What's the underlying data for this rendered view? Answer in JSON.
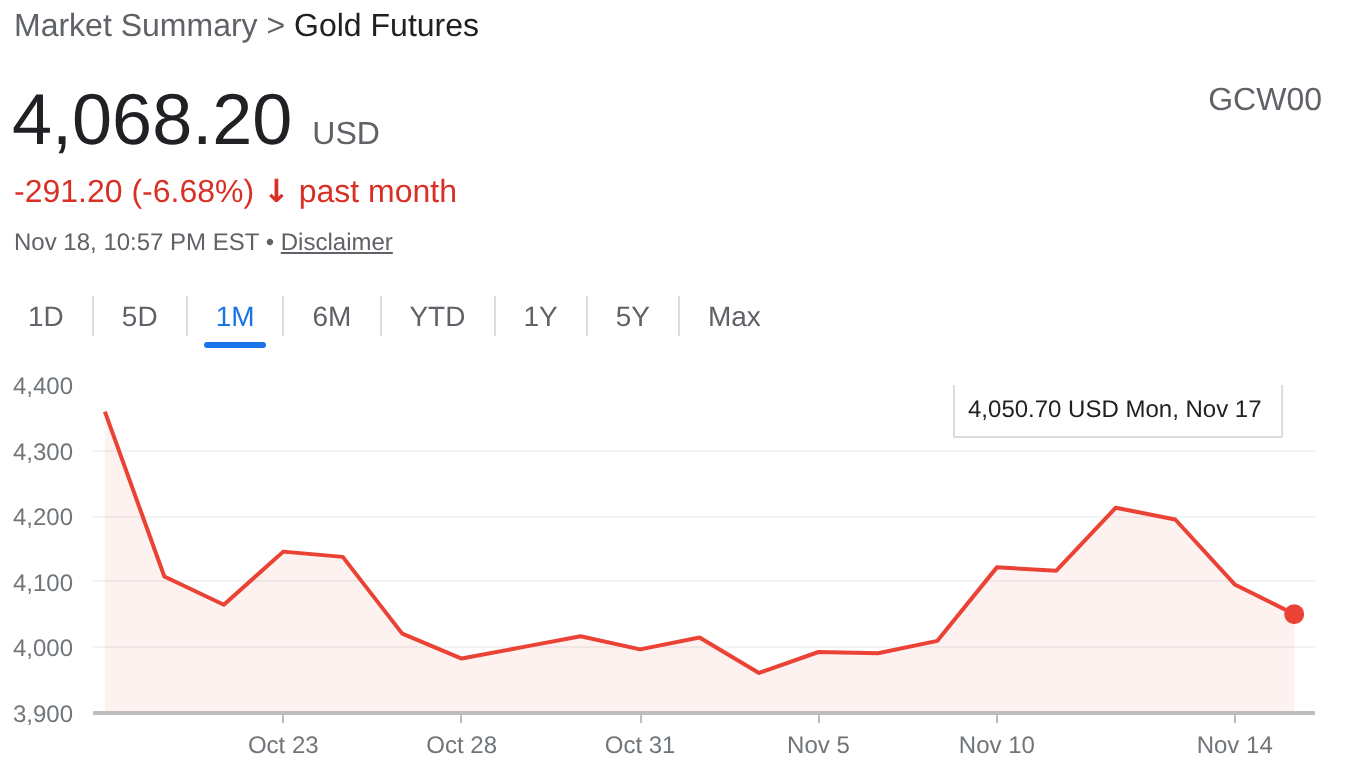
{
  "chart_data": {
    "type": "area",
    "title": "Market Summary > Gold Futures",
    "annotations": [
      "4,068.20",
      "USD",
      "-291.20 (-6.68%)",
      "↓",
      "past month",
      "Nov 18, 10:57 PM EST •",
      "Disclaimer",
      "GCW00",
      "1D",
      "5D",
      "1M",
      "6M",
      "YTD",
      "1Y",
      "5Y",
      "Max",
      "4,050.70 USD  Mon, Nov 17"
    ],
    "categories": [
      null,
      null,
      null,
      "Oct 23",
      null,
      null,
      "Oct 28",
      null,
      null,
      "Oct 31",
      null,
      null,
      "Nov 5",
      null,
      null,
      "Nov 10",
      null,
      null,
      null,
      "Nov 14",
      null
    ],
    "series": [
      {
        "color": "#ea4335",
        "values": [
          4359.4,
          4108,
          4065,
          4146,
          4138,
          4021,
          3983,
          4000,
          4017,
          3997,
          4015,
          3961,
          3993,
          3991,
          4010,
          4122,
          4117,
          4213,
          4195,
          4096,
          4050.7
        ]
      },
      {
        "type": "scatter",
        "marker": "circle",
        "color": "#ea4335",
        "values": [
          null,
          null,
          null,
          null,
          null,
          null,
          null,
          null,
          null,
          null,
          null,
          null,
          null,
          null,
          null,
          null,
          null,
          null,
          null,
          null,
          4050.7
        ]
      }
    ],
    "ylim": [
      3900,
      4400
    ],
    "yticks": [
      {
        "value": 3900,
        "label": "3,900"
      },
      {
        "value": 4000,
        "label": "4,000"
      },
      {
        "value": 4100,
        "label": "4,100"
      },
      {
        "value": 4200,
        "label": "4,200"
      },
      {
        "value": 4300,
        "label": "4,300"
      },
      {
        "value": 4400,
        "label": "4,400"
      }
    ],
    "grid": "y",
    "line_style": "solid"
  }
}
